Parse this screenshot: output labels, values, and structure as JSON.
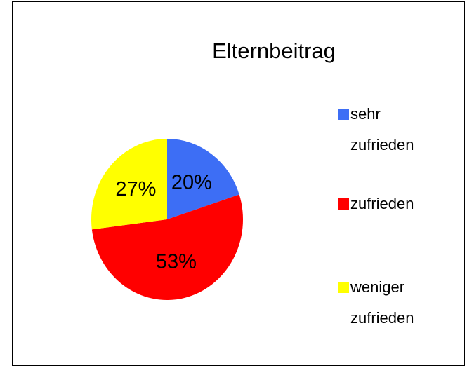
{
  "chart_data": {
    "type": "pie",
    "title": "Elternbeitrag",
    "categories": [
      "sehr zufrieden",
      "zufrieden",
      "weniger zufrieden"
    ],
    "values": [
      20,
      53,
      27
    ],
    "value_labels": [
      "20%",
      "53%",
      "27%"
    ],
    "colors": [
      "#3d6ef5",
      "#ff0000",
      "#ffff00"
    ],
    "legend": "right"
  }
}
